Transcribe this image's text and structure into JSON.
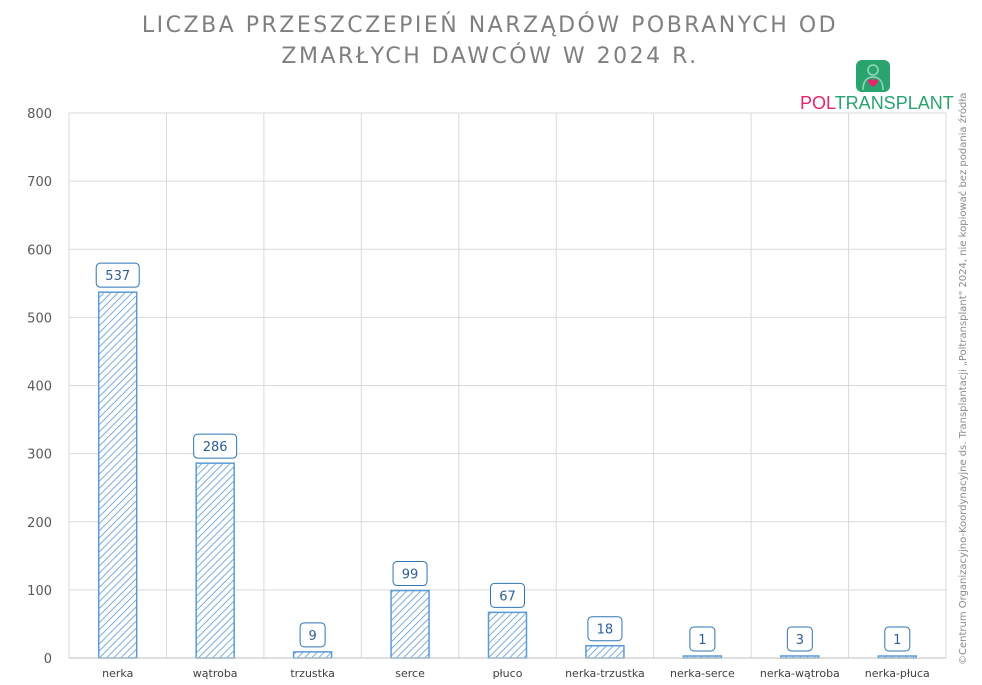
{
  "chart_data": {
    "type": "bar",
    "title_lines": [
      "LICZBA PRZESZCZEPIEŃ NARZĄDÓW POBRANYCH OD",
      "ZMARŁYCH DAWCÓW W 2024 R."
    ],
    "categories": [
      "nerka",
      "wątroba",
      "trzustka",
      "serce",
      "płuco",
      "nerka-trzustka",
      "nerka-serce",
      "nerka-wątroba",
      "nerka-płuca"
    ],
    "values": [
      537,
      286,
      9,
      99,
      67,
      18,
      1,
      3,
      1
    ],
    "ylim": [
      0,
      800
    ],
    "yticks": [
      0,
      100,
      200,
      300,
      400,
      500,
      600,
      700,
      800
    ],
    "grid": true,
    "data_labels": true,
    "bar_style": "hatched"
  },
  "logo": {
    "text_part1": "POL",
    "text_part2": "TRANSPLANT"
  },
  "copyright": "©Centrum Organizacyjno-Koordynacyjne ds. Transplantacji „Poltransplant\" 2024, nie kopiować bez podania źródła",
  "colors": {
    "bar_fill": "#cfe2f7",
    "bar_stroke": "#5b9bd5",
    "label_border": "#2e75b6",
    "label_text": "#2e5f99",
    "grid": "#d9d9d9",
    "title": "#7f7f7f",
    "brand_pink": "#e8246c",
    "brand_green": "#2aa36f"
  }
}
